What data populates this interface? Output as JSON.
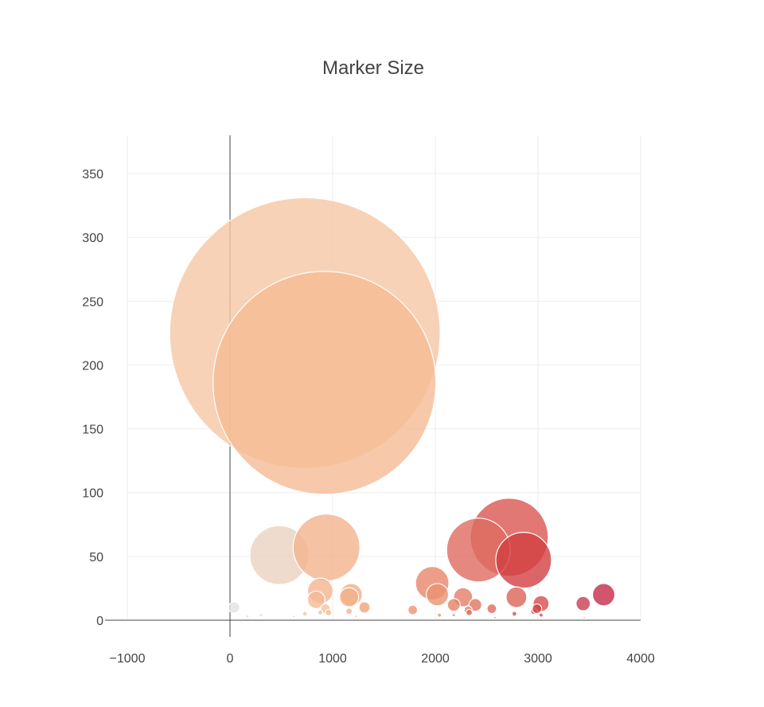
{
  "chart_data": {
    "type": "scatter",
    "title": "Marker Size",
    "xlabel": "",
    "ylabel": "",
    "xlim": [
      -1000,
      4000
    ],
    "ylim": [
      -10,
      380
    ],
    "x_ticks": [
      -1000,
      0,
      1000,
      2000,
      3000,
      4000
    ],
    "x_tick_labels": [
      "−1000",
      "0",
      "1000",
      "2000",
      "3000",
      "4000"
    ],
    "y_ticks": [
      0,
      50,
      100,
      150,
      200,
      250,
      300,
      350
    ],
    "y_tick_labels": [
      "0",
      "50",
      "100",
      "150",
      "200",
      "250",
      "300",
      "350"
    ],
    "grid": true,
    "legend": "none",
    "colorscale": [
      "#e5e5e5",
      "#f5c09a",
      "#e8866a",
      "#d6504c",
      "#c42d4a"
    ],
    "size_max_px": 170,
    "points": [
      {
        "x": 730,
        "y": 225,
        "size": 170,
        "color": "#f5c7a4"
      },
      {
        "x": 920,
        "y": 186,
        "size": 140,
        "color": "#f5bc95"
      },
      {
        "x": 480,
        "y": 51,
        "size": 37,
        "color": "#ebd2c0"
      },
      {
        "x": 940,
        "y": 57,
        "size": 42,
        "color": "#f2b38c"
      },
      {
        "x": 2720,
        "y": 65,
        "size": 49,
        "color": "#d95650"
      },
      {
        "x": 2420,
        "y": 55,
        "size": 40,
        "color": "#de6c60"
      },
      {
        "x": 2860,
        "y": 47,
        "size": 35,
        "color": "#d23e41"
      },
      {
        "x": 1970,
        "y": 29,
        "size": 21,
        "color": "#e8866a"
      },
      {
        "x": 2020,
        "y": 20,
        "size": 14,
        "color": "#ea9272"
      },
      {
        "x": 2270,
        "y": 18,
        "size": 12,
        "color": "#e47e68"
      },
      {
        "x": 2790,
        "y": 18,
        "size": 13,
        "color": "#db6458"
      },
      {
        "x": 3030,
        "y": 13,
        "size": 10,
        "color": "#d64e4d"
      },
      {
        "x": 3640,
        "y": 20,
        "size": 14,
        "color": "#c52b48"
      },
      {
        "x": 3440,
        "y": 13,
        "size": 9,
        "color": "#c93d4e"
      },
      {
        "x": 880,
        "y": 23,
        "size": 16,
        "color": "#f2b48e"
      },
      {
        "x": 840,
        "y": 16,
        "size": 11,
        "color": "#f4bc97"
      },
      {
        "x": 1180,
        "y": 20,
        "size": 14,
        "color": "#f3ae85"
      },
      {
        "x": 1160,
        "y": 18,
        "size": 12,
        "color": "#f3b088"
      },
      {
        "x": 1310,
        "y": 10,
        "size": 7,
        "color": "#f0a27c"
      },
      {
        "x": 1780,
        "y": 8,
        "size": 6,
        "color": "#eb9572"
      },
      {
        "x": 2180,
        "y": 12,
        "size": 8,
        "color": "#e68168"
      },
      {
        "x": 2390,
        "y": 12,
        "size": 8,
        "color": "#e0755f"
      },
      {
        "x": 2550,
        "y": 9,
        "size": 6,
        "color": "#de6d5c"
      },
      {
        "x": 2320,
        "y": 8,
        "size": 5,
        "color": "#e4806a"
      },
      {
        "x": 2330,
        "y": 6,
        "size": 4,
        "color": "#df6b5a"
      },
      {
        "x": 2770,
        "y": 5,
        "size": 3,
        "color": "#d54e4c"
      },
      {
        "x": 2960,
        "y": 7,
        "size": 4,
        "color": "#d44b4b"
      },
      {
        "x": 2990,
        "y": 9,
        "size": 6,
        "color": "#d24344"
      },
      {
        "x": 40,
        "y": 10,
        "size": 7,
        "color": "#e2e2e2"
      },
      {
        "x": 930,
        "y": 9,
        "size": 6,
        "color": "#f5c19d"
      },
      {
        "x": 960,
        "y": 6,
        "size": 4,
        "color": "#f4bb96"
      },
      {
        "x": 1160,
        "y": 7,
        "size": 4,
        "color": "#f3b48c"
      },
      {
        "x": 730,
        "y": 5,
        "size": 3,
        "color": "#f5c6a3"
      },
      {
        "x": 880,
        "y": 6,
        "size": 3,
        "color": "#f4bf9a"
      },
      {
        "x": 300,
        "y": 4,
        "size": 2,
        "color": "#f3cfb6"
      },
      {
        "x": 170,
        "y": 3,
        "size": 2,
        "color": "#e8dcd2"
      },
      {
        "x": 620,
        "y": 3,
        "size": 1.5,
        "color": "#f2c3a1"
      },
      {
        "x": 2040,
        "y": 4,
        "size": 2.5,
        "color": "#e9906f"
      },
      {
        "x": 2180,
        "y": 4,
        "size": 2,
        "color": "#e6846a"
      },
      {
        "x": 3030,
        "y": 4,
        "size": 2.5,
        "color": "#d54a4a"
      },
      {
        "x": 2580,
        "y": 2,
        "size": 1.5,
        "color": "#dc6a5a"
      },
      {
        "x": 3450,
        "y": 2,
        "size": 1.2,
        "color": "#ca3d4e"
      },
      {
        "x": 1230,
        "y": 3,
        "size": 1.5,
        "color": "#f2ad86"
      }
    ]
  }
}
